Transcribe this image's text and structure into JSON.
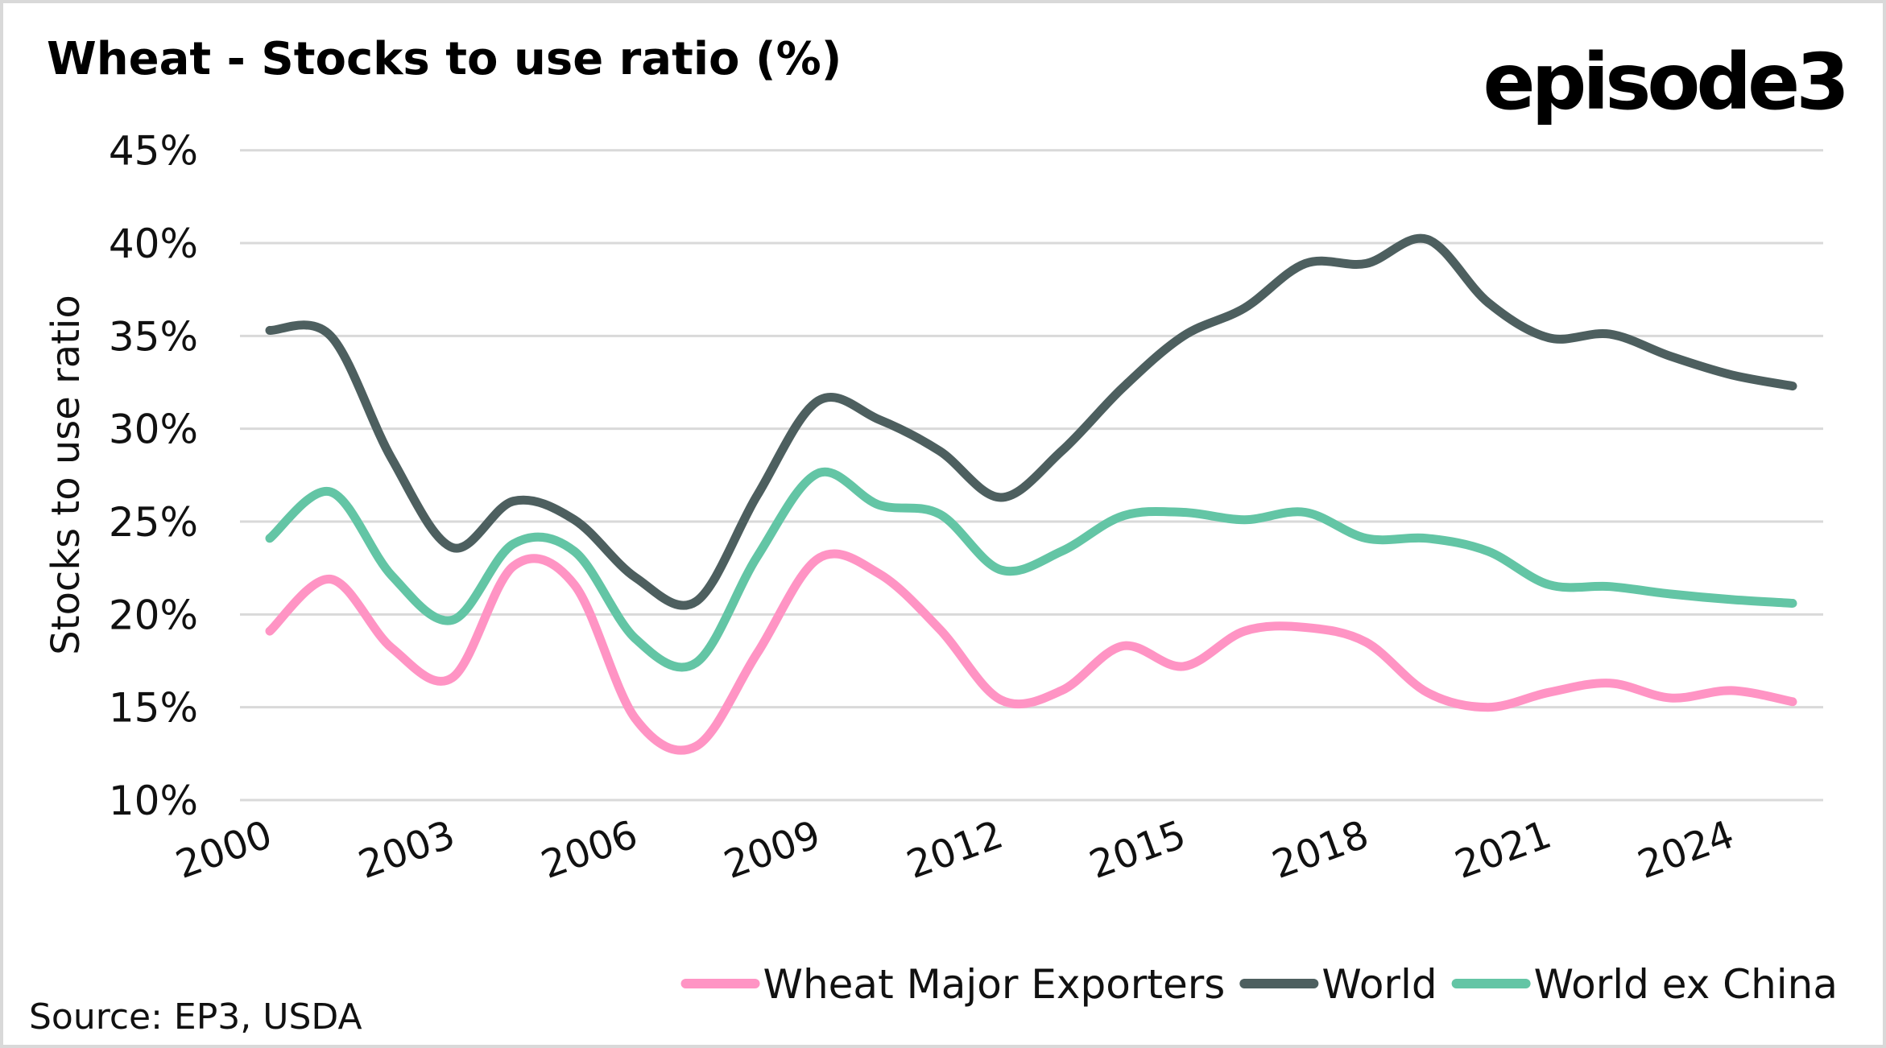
{
  "header": {
    "title": "Wheat - Stocks to use ratio (%)",
    "logo": "episode3"
  },
  "footer": {
    "source": "Source: EP3, USDA"
  },
  "chart_data": {
    "type": "line",
    "title": "Wheat - Stocks to use ratio (%)",
    "xlabel": "",
    "ylabel": "Stocks to use ratio",
    "x": [
      2000,
      2001,
      2002,
      2003,
      2004,
      2005,
      2006,
      2007,
      2008,
      2009,
      2010,
      2011,
      2012,
      2013,
      2014,
      2015,
      2016,
      2017,
      2018,
      2019,
      2020,
      2021,
      2022,
      2023,
      2024,
      2025
    ],
    "x_tick_labels": [
      "2000",
      "2003",
      "2006",
      "2009",
      "2012",
      "2015",
      "2018",
      "2021",
      "2024"
    ],
    "x_tick_values": [
      2000,
      2003,
      2006,
      2009,
      2012,
      2015,
      2018,
      2021,
      2024
    ],
    "ylim": [
      10,
      45
    ],
    "y_tick_values": [
      10,
      15,
      20,
      25,
      30,
      35,
      40,
      45
    ],
    "y_tick_labels": [
      "10%",
      "15%",
      "20%",
      "25%",
      "30%",
      "35%",
      "40%",
      "45%"
    ],
    "grid": true,
    "smooth": true,
    "legend_position": "bottom-right",
    "series": [
      {
        "name": "Wheat Major Exporters",
        "color": "#ff94c4",
        "values": [
          19.1,
          21.9,
          18.2,
          16.6,
          22.6,
          21.6,
          14.4,
          12.9,
          17.9,
          23.0,
          22.2,
          19.2,
          15.4,
          15.9,
          18.3,
          17.2,
          19.1,
          19.3,
          18.5,
          15.8,
          15.0,
          15.8,
          16.3,
          15.5,
          15.9,
          15.3
        ]
      },
      {
        "name": "World",
        "color": "#4d5f5f",
        "values": [
          35.3,
          35.0,
          28.4,
          23.6,
          26.1,
          25.1,
          22.0,
          20.7,
          26.4,
          31.5,
          30.5,
          28.8,
          26.3,
          28.8,
          32.2,
          35.0,
          36.5,
          38.9,
          38.9,
          40.2,
          36.8,
          34.9,
          35.1,
          33.9,
          32.9,
          32.3
        ]
      },
      {
        "name": "World ex China",
        "color": "#63c5a5",
        "values": [
          24.1,
          26.6,
          22.1,
          19.7,
          23.8,
          23.4,
          18.7,
          17.4,
          23.1,
          27.6,
          25.9,
          25.4,
          22.4,
          23.4,
          25.3,
          25.5,
          25.1,
          25.5,
          24.1,
          24.1,
          23.4,
          21.6,
          21.5,
          21.1,
          20.8,
          20.6
        ]
      }
    ]
  }
}
